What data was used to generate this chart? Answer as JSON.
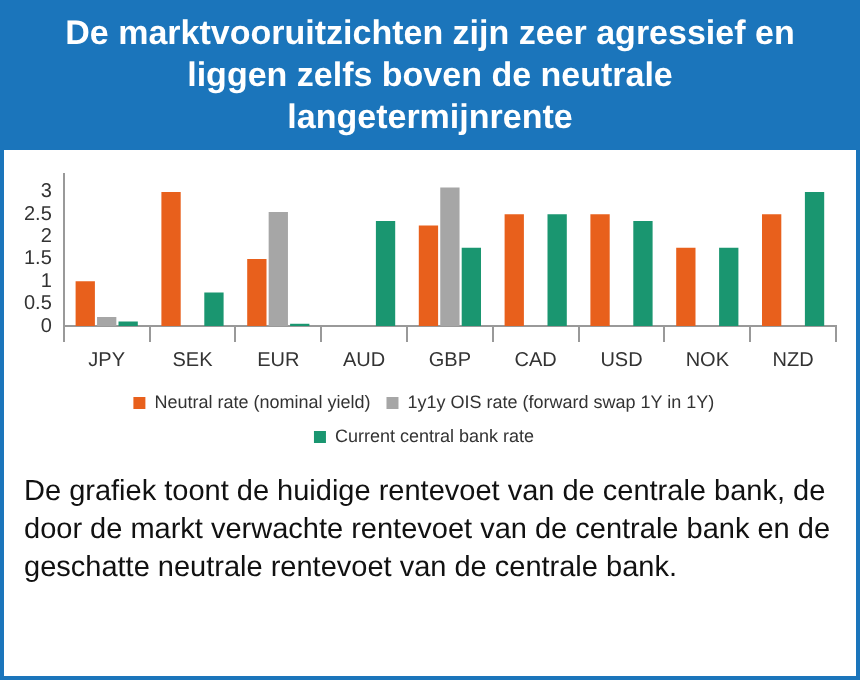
{
  "chart_data": {
    "type": "bar",
    "title": "De marktvooruitzichten zijn zeer agressief en liggen zelfs boven de neutrale langetermijnrente",
    "categories": [
      "JPY",
      "SEK",
      "EUR",
      "AUD",
      "GBP",
      "CAD",
      "USD",
      "NOK",
      "NZD"
    ],
    "series": [
      {
        "name": "Neutral rate (nominal yield)",
        "color": "#e8601c",
        "values": [
          1.0,
          3.0,
          1.5,
          null,
          2.25,
          2.5,
          2.5,
          1.75,
          2.5
        ]
      },
      {
        "name": "1y1y OIS rate (forward swap 1Y in 1Y)",
        "color": "#a6a6a6",
        "values": [
          0.2,
          null,
          2.55,
          null,
          3.1,
          null,
          null,
          null,
          null
        ]
      },
      {
        "name": "Current central bank rate",
        "color": "#1a9670",
        "values": [
          0.1,
          0.75,
          0.05,
          2.35,
          1.75,
          2.5,
          2.35,
          1.75,
          3.0
        ]
      }
    ],
    "ylim": [
      0,
      3.4
    ],
    "yticks": [
      0,
      0.5,
      1,
      1.5,
      2,
      2.5,
      3
    ],
    "grid": false,
    "legend": "bottom",
    "annotations": [
      "De grafiek toont de huidige rentevoet van de centrale bank, de door de markt verwachte rentevoet van de centrale bank en de geschatte neutrale rentevoet van de centrale bank."
    ]
  }
}
